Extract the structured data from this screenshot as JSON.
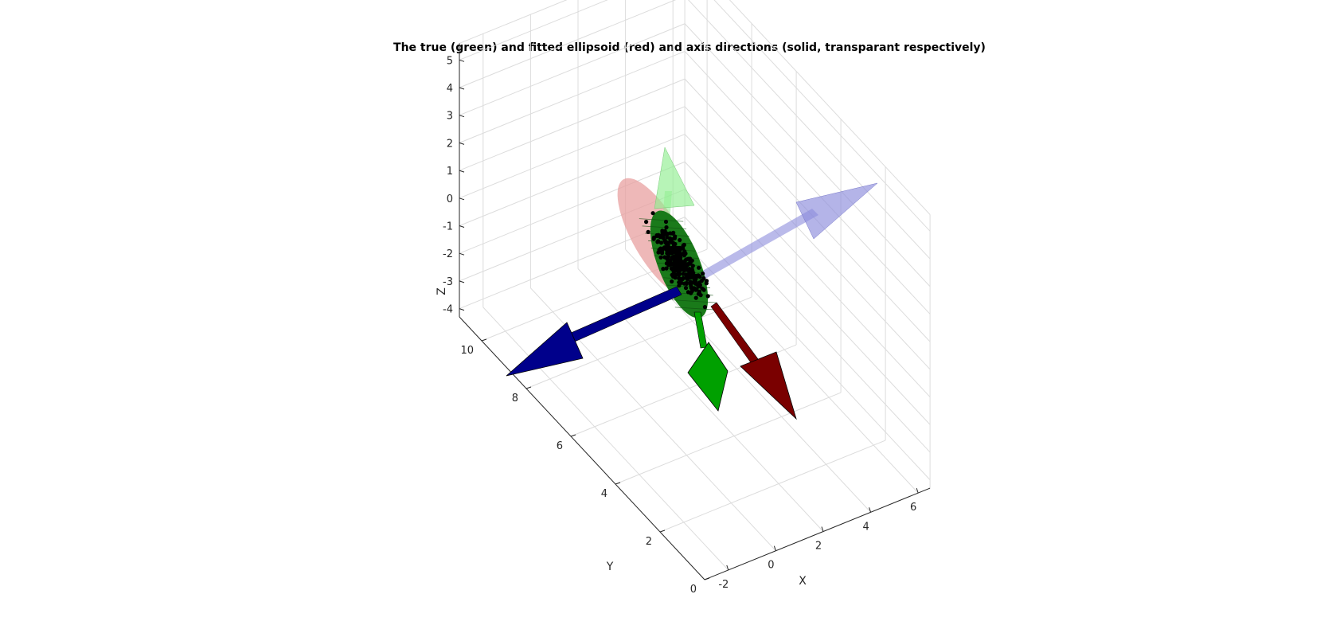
{
  "chart_data": {
    "type": "scatter3d",
    "title": "The true (green) and fitted ellipsoid (red) and axis directions (solid, transparant respectively)",
    "xlabel": "X",
    "ylabel": "Y",
    "zlabel": "Z",
    "xlim": [
      -3,
      6.5
    ],
    "ylim": [
      0,
      11
    ],
    "zlim": [
      -4.3,
      5.6
    ],
    "x_ticks": [
      -2,
      0,
      2,
      4,
      6
    ],
    "y_ticks": [
      0,
      2,
      4,
      6,
      8,
      10
    ],
    "z_ticks": [
      -4,
      -3,
      -2,
      -1,
      0,
      1,
      2,
      3,
      4,
      5
    ],
    "grid": true,
    "colors": {
      "true_ellipsoid": "#1a7a1a",
      "fitted_ellipsoid": "#e8a0a0",
      "axis_red_solid": "#7a0000",
      "axis_green_solid": "#00a000",
      "axis_blue_solid": "#00008b",
      "axis_green_transparent": "#90ee90",
      "axis_blue_transparent": "#8c8cdc",
      "points": "#000000"
    },
    "series": [
      {
        "kind": "ellipsoid-fitted",
        "color": "fitted_ellipsoid"
      },
      {
        "kind": "ellipsoid-true",
        "color": "true_ellipsoid"
      },
      {
        "kind": "arrow",
        "style": "solid",
        "color": "axis_blue_solid"
      },
      {
        "kind": "arrow",
        "style": "solid",
        "color": "axis_green_solid"
      },
      {
        "kind": "arrow",
        "style": "solid",
        "color": "axis_red_solid"
      },
      {
        "kind": "arrow",
        "style": "transparent",
        "color": "axis_blue_transparent"
      },
      {
        "kind": "arrow",
        "style": "transparent",
        "color": "axis_green_transparent"
      },
      {
        "kind": "points",
        "color": "points",
        "count": 300
      }
    ]
  }
}
